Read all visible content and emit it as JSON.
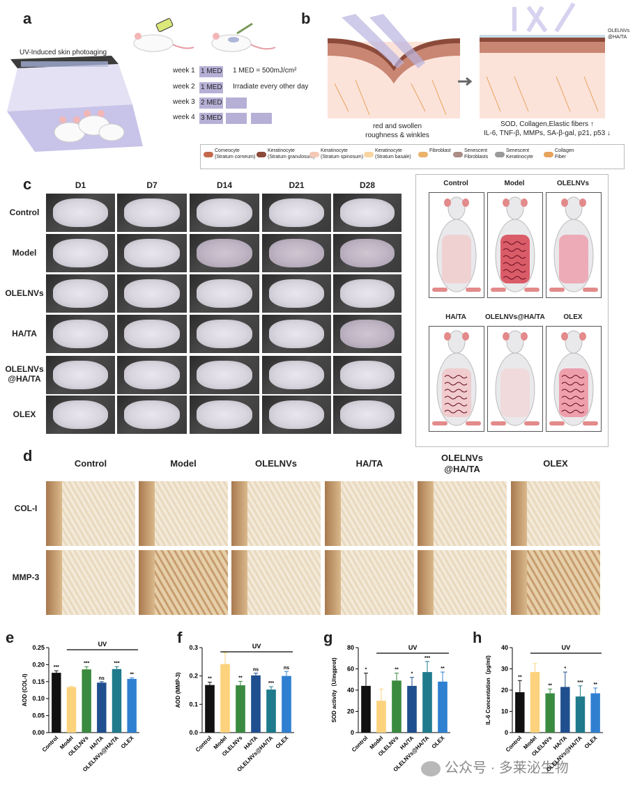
{
  "panel_a": {
    "label": "a",
    "device_title": "UV-Induced skin photoaging",
    "weeks": [
      {
        "week": "week 1",
        "med": "1 MED",
        "note": "1 MED = 500mJ/cm²"
      },
      {
        "week": "week 2",
        "med": "1 MED",
        "note": "Irradiate every other day"
      },
      {
        "week": "week 3",
        "med": "2 MED",
        "note": ""
      },
      {
        "week": "week 4",
        "med": "3 MED",
        "note": ""
      }
    ]
  },
  "panel_b": {
    "label": "b",
    "left_caption": [
      "red and swollen",
      "roughness & winkles"
    ],
    "right_caption": [
      "SOD, Collagen,Elastic fibers ↑",
      "IL-6, TNF-β, MMPs, SA-β-gal, p21, p53 ↓"
    ],
    "film_label": [
      "OLELNVs",
      "@HA/TA"
    ],
    "legend": [
      {
        "text": [
          "Corneocyte",
          "(Stratum corneum)"
        ],
        "color": "#c4684b"
      },
      {
        "text": [
          "Keratinocyte",
          "(Stratum granulosum)"
        ],
        "color": "#8b4a3a"
      },
      {
        "text": [
          "Keratinocyte",
          "(Stratum spinosum)"
        ],
        "color": "#f3c9b6"
      },
      {
        "text": [
          "Keratinocyte",
          "(Stratum basale)"
        ],
        "color": "#f7d4a0"
      },
      {
        "text": [
          "Fibroblast"
        ],
        "color": "#e9b36a"
      },
      {
        "text": [
          "Senescent",
          "Fibroblasts"
        ],
        "color": "#a98d86"
      },
      {
        "text": [
          "Senescent",
          "Keratinocyte"
        ],
        "color": "#9a9a9a"
      },
      {
        "text": [
          "Collagen",
          "Fiber"
        ],
        "color": "#e8a25a"
      }
    ]
  },
  "panel_c": {
    "label": "c",
    "days": [
      "D1",
      "D7",
      "D14",
      "D21",
      "D28"
    ],
    "groups": [
      "Control",
      "Model",
      "OLELNVs",
      "HA/TA",
      "OLELNVs\n@HA/TA",
      "OLEX"
    ],
    "schematic_labels": [
      "Control",
      "Model",
      "OLELNVs",
      "HA/TA",
      "OLELNVs@HA/TA",
      "OLEX"
    ]
  },
  "panel_d": {
    "label": "d",
    "columns": [
      "Control",
      "Model",
      "OLELNVs",
      "HA/TA",
      "OLELNVs\n@HA/TA",
      "OLEX"
    ],
    "rows": [
      "COL-I",
      "MMP-3"
    ]
  },
  "chart_data": [
    {
      "panel": "e",
      "type": "bar",
      "ylabel": "AOD (COL-I)",
      "ylim": [
        0,
        0.25
      ],
      "yticks": [
        "0.00",
        "0.05",
        "0.10",
        "0.15",
        "0.20",
        "0.25"
      ],
      "categories": [
        "Control",
        "Model",
        "OLELNVs",
        "HA/TA",
        "OLELNVs@HA/TA",
        "OLEX"
      ],
      "values": [
        0.176,
        0.134,
        0.186,
        0.147,
        0.187,
        0.158
      ],
      "errors": [
        0.006,
        0.002,
        0.008,
        0.003,
        0.007,
        0.003
      ],
      "sig": [
        "***",
        "",
        "***",
        "ns",
        "***",
        "**"
      ],
      "bracket": "UV"
    },
    {
      "panel": "f",
      "type": "bar",
      "ylabel": "AOD (MMP-3)",
      "ylim": [
        0,
        0.3
      ],
      "yticks": [
        "0.0",
        "0.1",
        "0.2",
        "0.3"
      ],
      "categories": [
        "Control",
        "Model",
        "OLELNVs",
        "HA/TA",
        "OLELNVs@HA/TA",
        "OLEX"
      ],
      "values": [
        0.168,
        0.242,
        0.167,
        0.202,
        0.152,
        0.2
      ],
      "errors": [
        0.01,
        0.04,
        0.014,
        0.008,
        0.01,
        0.016
      ],
      "sig": [
        "**",
        "",
        "**",
        "ns",
        "***",
        "ns"
      ],
      "bracket": "UV"
    },
    {
      "panel": "g",
      "type": "bar",
      "ylabel": "SOD activity（U/mgprot)",
      "ylim": [
        0,
        80
      ],
      "yticks": [
        "0",
        "20",
        "40",
        "60",
        "80"
      ],
      "categories": [
        "Control",
        "Model",
        "OLELNVs",
        "HA/TA",
        "OLELNVs@HA/TA",
        "OLEX"
      ],
      "values": [
        44,
        30,
        49,
        44,
        57,
        48
      ],
      "errors": [
        12,
        11,
        7,
        8,
        10,
        9
      ],
      "sig": [
        "*",
        "",
        "**",
        "*",
        "***",
        "**"
      ],
      "bracket": "UV"
    },
    {
      "panel": "h",
      "type": "bar",
      "ylabel": "IL-6 Concentation（pg/ml)",
      "ylim": [
        0,
        40
      ],
      "yticks": [
        "0",
        "10",
        "20",
        "30",
        "40"
      ],
      "categories": [
        "Control",
        "Model",
        "OLELNVs",
        "HA/TA",
        "OLELNVs@HA/TA",
        "OLEX"
      ],
      "values": [
        19,
        28.5,
        18.5,
        21.5,
        17,
        18.5
      ],
      "errors": [
        5.5,
        4,
        2,
        7,
        5,
        2.5
      ],
      "sig": [
        "**",
        "",
        "**",
        "*",
        "***",
        "**"
      ],
      "bracket": "UV"
    }
  ],
  "colors": [
    "#111111",
    "#fcd27c",
    "#3a8a3f",
    "#1f4f8f",
    "#1f7a8c",
    "#2f80d0"
  ],
  "watermark": "公众号 · 多莱泌生物"
}
